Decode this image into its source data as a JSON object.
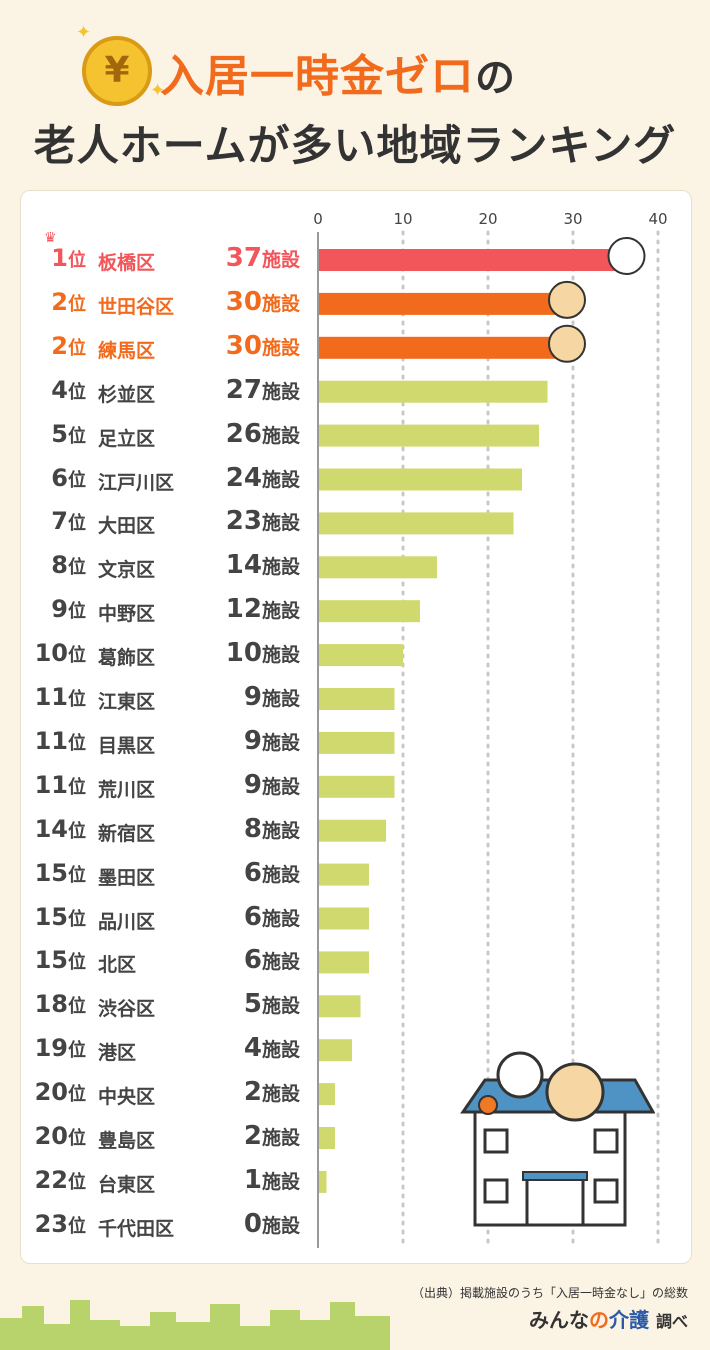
{
  "title": {
    "line1": "入居一時金ゼロ",
    "line1_particle": "の",
    "line2": "老人ホームが多い地域ランキング",
    "coin_symbol": "¥"
  },
  "colors": {
    "first": "#f2555a",
    "second": "#f26b1d",
    "others": "#cfd96d",
    "grid": "#c8c8c8"
  },
  "rank_suffix": "位",
  "count_suffix": "施設",
  "source": "（出典）掲載施設のうち「入居一時金なし」の総数",
  "brand": {
    "name_a": "みんな",
    "name_b": "の",
    "name_c": "介護",
    "suffix": "調べ"
  },
  "chart_data": {
    "type": "bar",
    "orientation": "horizontal",
    "xlim": [
      0,
      40
    ],
    "ticks": [
      0,
      10,
      20,
      30,
      40
    ],
    "grid": true,
    "rows": [
      {
        "rank": "1",
        "area": "板橋区",
        "value": 37
      },
      {
        "rank": "2",
        "area": "世田谷区",
        "value": 30
      },
      {
        "rank": "2",
        "area": "練馬区",
        "value": 30
      },
      {
        "rank": "4",
        "area": "杉並区",
        "value": 27
      },
      {
        "rank": "5",
        "area": "足立区",
        "value": 26
      },
      {
        "rank": "6",
        "area": "江戸川区",
        "value": 24
      },
      {
        "rank": "7",
        "area": "大田区",
        "value": 23
      },
      {
        "rank": "8",
        "area": "文京区",
        "value": 14
      },
      {
        "rank": "9",
        "area": "中野区",
        "value": 12
      },
      {
        "rank": "10",
        "area": "葛飾区",
        "value": 10
      },
      {
        "rank": "11",
        "area": "江東区",
        "value": 9
      },
      {
        "rank": "11",
        "area": "目黒区",
        "value": 9
      },
      {
        "rank": "11",
        "area": "荒川区",
        "value": 9
      },
      {
        "rank": "14",
        "area": "新宿区",
        "value": 8
      },
      {
        "rank": "15",
        "area": "墨田区",
        "value": 6
      },
      {
        "rank": "15",
        "area": "品川区",
        "value": 6
      },
      {
        "rank": "15",
        "area": "北区",
        "value": 6
      },
      {
        "rank": "18",
        "area": "渋谷区",
        "value": 5
      },
      {
        "rank": "19",
        "area": "港区",
        "value": 4
      },
      {
        "rank": "20",
        "area": "中央区",
        "value": 2
      },
      {
        "rank": "20",
        "area": "豊島区",
        "value": 2
      },
      {
        "rank": "22",
        "area": "台東区",
        "value": 1
      },
      {
        "rank": "23",
        "area": "千代田区",
        "value": 0
      }
    ]
  }
}
